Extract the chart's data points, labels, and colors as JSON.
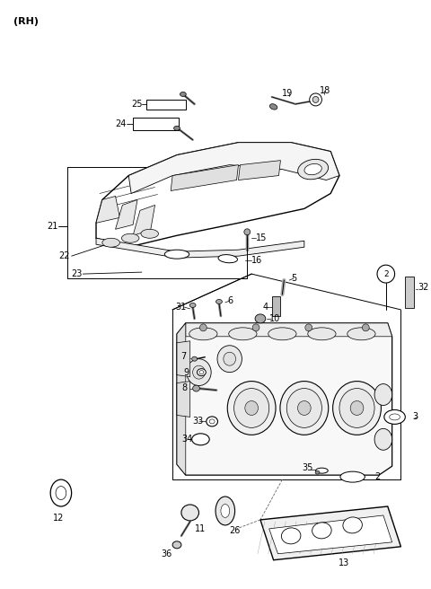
{
  "title": "(RH)",
  "bg": "#ffffff",
  "lc": "#000000",
  "fig_w": 4.8,
  "fig_h": 6.56,
  "dpi": 100
}
